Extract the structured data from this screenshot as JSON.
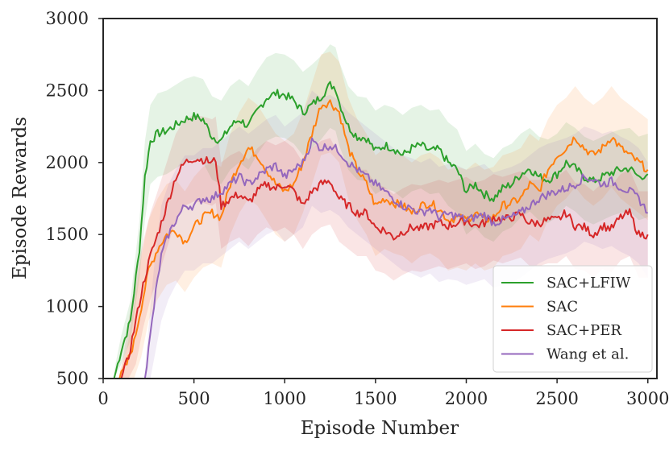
{
  "chart_data": {
    "type": "line",
    "title": "",
    "xlabel": "Episode Number",
    "ylabel": "Episode Rewards",
    "xlim": [
      0,
      3050
    ],
    "ylim": [
      500,
      3000
    ],
    "x_ticks": [
      "0",
      "500",
      "1000",
      "1500",
      "2000",
      "2500",
      "3000"
    ],
    "y_ticks": [
      "500",
      "1000",
      "1500",
      "2000",
      "2500",
      "3000"
    ],
    "legend_position": "lower-right",
    "grid": false,
    "series": [
      {
        "name": "SAC+LFIW",
        "color": "#2ca02c",
        "x": [
          60,
          100,
          150,
          200,
          230,
          260,
          300,
          350,
          400,
          450,
          500,
          550,
          600,
          650,
          700,
          750,
          800,
          850,
          900,
          950,
          1000,
          1050,
          1100,
          1150,
          1200,
          1250,
          1280,
          1300,
          1350,
          1400,
          1450,
          1500,
          1550,
          1600,
          1650,
          1700,
          1750,
          1800,
          1850,
          1900,
          1950,
          2000,
          2050,
          2100,
          2150,
          2200,
          2250,
          2300,
          2350,
          2400,
          2450,
          2500,
          2550,
          2600,
          2650,
          2700,
          2750,
          2800,
          2850,
          2900,
          2950,
          3000
        ],
        "values": [
          500,
          700,
          900,
          1400,
          1900,
          2150,
          2200,
          2220,
          2260,
          2300,
          2320,
          2300,
          2180,
          2150,
          2250,
          2300,
          2250,
          2360,
          2450,
          2480,
          2470,
          2430,
          2350,
          2400,
          2460,
          2540,
          2520,
          2420,
          2250,
          2180,
          2170,
          2080,
          2120,
          2100,
          2050,
          2100,
          2120,
          2080,
          2090,
          2000,
          1950,
          1800,
          1850,
          1780,
          1750,
          1820,
          1850,
          1920,
          1960,
          1900,
          1880,
          1920,
          2000,
          1960,
          1900,
          1870,
          1900,
          1930,
          1950,
          1960,
          1900,
          1920
        ]
      },
      {
        "name": "SAC",
        "color": "#ff7f0e",
        "x": [
          90,
          130,
          170,
          210,
          250,
          300,
          350,
          400,
          450,
          500,
          550,
          600,
          650,
          700,
          750,
          800,
          850,
          900,
          950,
          1000,
          1050,
          1100,
          1150,
          1200,
          1250,
          1300,
          1350,
          1400,
          1450,
          1500,
          1550,
          1600,
          1650,
          1700,
          1750,
          1800,
          1850,
          1900,
          1950,
          2000,
          2050,
          2100,
          2150,
          2200,
          2250,
          2300,
          2350,
          2400,
          2450,
          2500,
          2550,
          2600,
          2650,
          2700,
          2750,
          2800,
          2850,
          2900,
          2950,
          3000
        ],
        "values": [
          500,
          600,
          750,
          1000,
          1250,
          1400,
          1500,
          1530,
          1450,
          1550,
          1620,
          1650,
          1620,
          1850,
          2000,
          2100,
          2050,
          1950,
          1850,
          1800,
          1850,
          2000,
          2200,
          2400,
          2420,
          2350,
          2100,
          1950,
          1850,
          1700,
          1750,
          1720,
          1700,
          1650,
          1700,
          1720,
          1680,
          1600,
          1620,
          1600,
          1650,
          1600,
          1620,
          1700,
          1720,
          1750,
          1850,
          1800,
          1950,
          2050,
          2100,
          2180,
          2100,
          2050,
          2100,
          2180,
          2100,
          2050,
          2000,
          1950
        ]
      },
      {
        "name": "SAC+PER",
        "color": "#d62728",
        "x": [
          100,
          140,
          180,
          220,
          260,
          300,
          350,
          400,
          450,
          500,
          550,
          600,
          620,
          650,
          700,
          750,
          800,
          850,
          900,
          950,
          1000,
          1050,
          1100,
          1150,
          1200,
          1250,
          1300,
          1350,
          1400,
          1450,
          1500,
          1550,
          1600,
          1650,
          1700,
          1750,
          1800,
          1850,
          1900,
          1950,
          2000,
          2050,
          2100,
          2150,
          2200,
          2250,
          2300,
          2350,
          2400,
          2450,
          2500,
          2550,
          2600,
          2650,
          2700,
          2750,
          2800,
          2850,
          2900,
          2950,
          3000
        ],
        "values": [
          500,
          650,
          900,
          1150,
          1350,
          1500,
          1700,
          1900,
          2000,
          2030,
          2020,
          2000,
          2020,
          1700,
          1750,
          1780,
          1720,
          1800,
          1850,
          1820,
          1850,
          1800,
          1700,
          1800,
          1850,
          1870,
          1750,
          1700,
          1650,
          1650,
          1550,
          1530,
          1480,
          1520,
          1550,
          1540,
          1560,
          1580,
          1560,
          1580,
          1600,
          1560,
          1580,
          1620,
          1600,
          1620,
          1640,
          1580,
          1580,
          1600,
          1600,
          1650,
          1560,
          1550,
          1500,
          1560,
          1540,
          1620,
          1650,
          1500,
          1500
        ]
      },
      {
        "name": "Wang et al.",
        "color": "#9467bd",
        "x": [
          230,
          260,
          290,
          320,
          360,
          400,
          450,
          500,
          550,
          600,
          650,
          700,
          750,
          800,
          850,
          900,
          950,
          1000,
          1050,
          1100,
          1150,
          1200,
          1250,
          1300,
          1350,
          1400,
          1450,
          1500,
          1550,
          1600,
          1650,
          1700,
          1750,
          1800,
          1850,
          1900,
          1950,
          2000,
          2050,
          2100,
          2150,
          2200,
          2250,
          2300,
          2350,
          2400,
          2450,
          2500,
          2550,
          2600,
          2650,
          2700,
          2750,
          2800,
          2850,
          2900,
          2950,
          3000
        ],
        "values": [
          500,
          800,
          1100,
          1350,
          1500,
          1600,
          1700,
          1700,
          1750,
          1750,
          1800,
          1850,
          1900,
          1850,
          1900,
          1950,
          1980,
          1900,
          1950,
          2000,
          2150,
          2100,
          2120,
          2080,
          2000,
          1950,
          1900,
          1850,
          1800,
          1750,
          1700,
          1680,
          1650,
          1680,
          1620,
          1640,
          1630,
          1600,
          1620,
          1640,
          1580,
          1600,
          1620,
          1650,
          1700,
          1750,
          1780,
          1800,
          1820,
          1850,
          1900,
          1880,
          1850,
          1870,
          1830,
          1800,
          1750,
          1650
        ]
      }
    ],
    "bands": [
      {
        "series": "SAC+LFIW",
        "lower": [
          500,
          600,
          760,
          1200,
          1600,
          1850,
          1900,
          1920,
          1960,
          2000,
          2020,
          2000,
          1880,
          1850,
          1950,
          2000,
          1950,
          2060,
          2150,
          2180,
          2170,
          2130,
          2050,
          2100,
          2160,
          2240,
          2220,
          2120,
          1950,
          1880,
          1870,
          1780,
          1820,
          1800,
          1750,
          1800,
          1820,
          1780,
          1790,
          1700,
          1650,
          1500,
          1550,
          1480,
          1450,
          1520,
          1550,
          1620,
          1660,
          1600,
          1580,
          1620,
          1700,
          1660,
          1600,
          1570,
          1600,
          1630,
          1650,
          1660,
          1600,
          1620
        ],
        "upper": [
          550,
          800,
          1040,
          1600,
          2150,
          2400,
          2480,
          2500,
          2540,
          2580,
          2600,
          2580,
          2460,
          2430,
          2530,
          2580,
          2530,
          2640,
          2730,
          2760,
          2750,
          2710,
          2630,
          2680,
          2740,
          2820,
          2800,
          2700,
          2530,
          2460,
          2450,
          2360,
          2400,
          2380,
          2330,
          2380,
          2400,
          2360,
          2370,
          2280,
          2230,
          2080,
          2130,
          2060,
          2030,
          2100,
          2130,
          2200,
          2240,
          2180,
          2160,
          2200,
          2280,
          2240,
          2180,
          2150,
          2180,
          2210,
          2230,
          2240,
          2180,
          2200
        ]
      },
      {
        "series": "SAC",
        "lower": [
          500,
          500,
          500,
          650,
          900,
          1050,
          1150,
          1180,
          1100,
          1200,
          1270,
          1300,
          1270,
          1500,
          1650,
          1750,
          1700,
          1600,
          1500,
          1450,
          1500,
          1650,
          1850,
          2050,
          2070,
          2000,
          1750,
          1600,
          1500,
          1350,
          1400,
          1370,
          1350,
          1300,
          1350,
          1370,
          1330,
          1250,
          1270,
          1250,
          1300,
          1250,
          1270,
          1350,
          1370,
          1400,
          1500,
          1450,
          1600,
          1700,
          1750,
          1830,
          1750,
          1700,
          1750,
          1830,
          1750,
          1700,
          1650,
          1600
        ],
        "upper": [
          550,
          700,
          1000,
          1350,
          1600,
          1750,
          1850,
          1880,
          1800,
          1900,
          1970,
          2000,
          1970,
          2200,
          2350,
          2450,
          2400,
          2300,
          2200,
          2150,
          2200,
          2350,
          2550,
          2750,
          2770,
          2700,
          2450,
          2300,
          2200,
          2050,
          2100,
          2070,
          2050,
          2000,
          2050,
          2070,
          2030,
          1950,
          1970,
          1950,
          2000,
          1950,
          1970,
          2050,
          2070,
          2100,
          2200,
          2150,
          2300,
          2400,
          2450,
          2530,
          2450,
          2400,
          2450,
          2530,
          2450,
          2400,
          2350,
          2300
        ]
      },
      {
        "series": "SAC+PER",
        "lower": [
          500,
          500,
          600,
          850,
          1050,
          1200,
          1400,
          1600,
          1700,
          1730,
          1720,
          1700,
          1720,
          1400,
          1450,
          1480,
          1420,
          1500,
          1550,
          1520,
          1550,
          1500,
          1400,
          1500,
          1550,
          1570,
          1450,
          1400,
          1350,
          1350,
          1250,
          1230,
          1180,
          1220,
          1250,
          1240,
          1260,
          1280,
          1260,
          1280,
          1300,
          1260,
          1280,
          1320,
          1300,
          1320,
          1340,
          1280,
          1280,
          1300,
          1300,
          1350,
          1260,
          1250,
          1200,
          1260,
          1240,
          1320,
          1350,
          1200,
          1200
        ],
        "upper": [
          560,
          900,
          1200,
          1450,
          1650,
          1800,
          2000,
          2200,
          2300,
          2330,
          2320,
          2300,
          2320,
          2000,
          2050,
          2080,
          2020,
          2100,
          2150,
          2120,
          2150,
          2100,
          2000,
          2100,
          2150,
          2170,
          2050,
          2000,
          1950,
          1950,
          1850,
          1830,
          1780,
          1820,
          1850,
          1840,
          1860,
          1880,
          1860,
          1880,
          1900,
          1860,
          1880,
          1920,
          1900,
          1920,
          1940,
          1880,
          1880,
          1900,
          1900,
          1950,
          1860,
          1850,
          1800,
          1860,
          1840,
          1920,
          1950,
          1800,
          1800
        ]
      },
      {
        "series": "Wang et al.",
        "lower": [
          500,
          500,
          700,
          900,
          1050,
          1150,
          1250,
          1250,
          1300,
          1300,
          1350,
          1400,
          1450,
          1400,
          1450,
          1500,
          1530,
          1450,
          1500,
          1550,
          1700,
          1650,
          1670,
          1630,
          1550,
          1500,
          1450,
          1400,
          1350,
          1300,
          1250,
          1230,
          1200,
          1230,
          1170,
          1190,
          1180,
          1150,
          1170,
          1190,
          1130,
          1150,
          1170,
          1200,
          1250,
          1300,
          1330,
          1350,
          1370,
          1400,
          1450,
          1430,
          1400,
          1420,
          1380,
          1350,
          1300,
          1200
        ],
        "upper": [
          560,
          1000,
          1400,
          1700,
          1850,
          1950,
          2050,
          2050,
          2100,
          2100,
          2150,
          2200,
          2250,
          2200,
          2250,
          2300,
          2330,
          2250,
          2300,
          2350,
          2500,
          2450,
          2470,
          2430,
          2350,
          2300,
          2250,
          2200,
          2150,
          2100,
          2050,
          2030,
          2000,
          2030,
          1970,
          1990,
          1980,
          1950,
          1970,
          1990,
          1930,
          1950,
          1970,
          2000,
          2050,
          2100,
          2130,
          2150,
          2170,
          2200,
          2250,
          2230,
          2200,
          2220,
          2180,
          2150,
          2100,
          2000
        ]
      }
    ]
  }
}
